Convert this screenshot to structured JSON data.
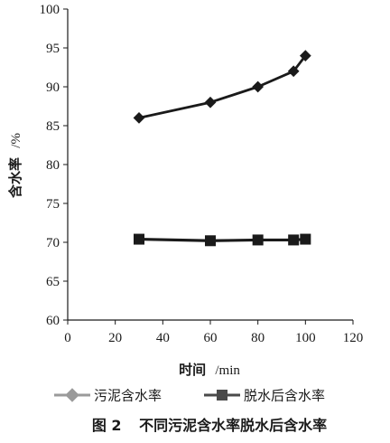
{
  "caption": {
    "number": "图 2",
    "text": "不同污泥含水率脱水后含水率"
  },
  "chart_data": {
    "type": "line",
    "xlabel": "时间",
    "xunit": "/min",
    "ylabel": "含水率",
    "yunit": "/%",
    "xlim": [
      0,
      120
    ],
    "ylim": [
      60,
      100
    ],
    "xticks": [
      0,
      20,
      40,
      60,
      80,
      100,
      120
    ],
    "yticks": [
      60,
      65,
      70,
      75,
      80,
      85,
      90,
      95,
      100
    ],
    "grid": false,
    "legend_position": "bottom",
    "series": [
      {
        "name": "污泥含水率",
        "marker": "diamond",
        "x": [
          30,
          60,
          80,
          95,
          100
        ],
        "y": [
          86,
          88,
          90,
          92,
          94
        ]
      },
      {
        "name": "脱水后含水率",
        "marker": "square",
        "x": [
          30,
          60,
          80,
          95,
          100
        ],
        "y": [
          70.4,
          70.2,
          70.3,
          70.3,
          70.4
        ]
      }
    ],
    "colors": {
      "diamond_series_line": "#1a1a1a",
      "square_series_line": "#1a1a1a",
      "legend_diamond": "#9a9a9a",
      "legend_square": "#4a4a4a",
      "axis": "#1a1a1a"
    }
  }
}
